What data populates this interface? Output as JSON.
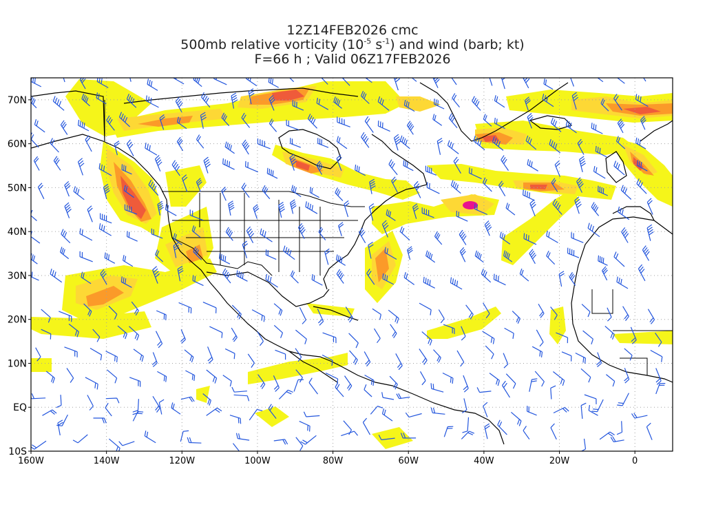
{
  "header": {
    "line1": "12Z14FEB2026 cmc",
    "line2_pre": "500mb relative vorticity (10",
    "line2_exp1": "-5",
    "line2_mid": " s",
    "line2_exp2": "-1",
    "line2_post": ") and wind (barb; kt)",
    "line3": "F=66 h ; Valid 06Z17FEB2026"
  },
  "map": {
    "lon_range": [
      -160,
      10
    ],
    "lat_range": [
      -10,
      75
    ],
    "lat_labels": [
      "70N",
      "60N",
      "50N",
      "40N",
      "30N",
      "20N",
      "10N",
      "EQ",
      "10S"
    ],
    "lat_values": [
      70,
      60,
      50,
      40,
      30,
      20,
      10,
      0,
      -10
    ],
    "lon_labels": [
      "160W",
      "140W",
      "120W",
      "100W",
      "80W",
      "60W",
      "40W",
      "20W",
      "0"
    ],
    "lon_values": [
      -160,
      -140,
      -120,
      -100,
      -80,
      -60,
      -40,
      -20,
      0
    ],
    "colors": {
      "shade_yellow": "#f5f51a",
      "shade_light_orange": "#fdd835",
      "shade_orange": "#fb9a29",
      "shade_red_orange": "#ef5b3a",
      "shade_magenta": "#e8138f",
      "barb": "#2255dd",
      "coast": "#000000",
      "grid": "#a0a0a0"
    }
  }
}
